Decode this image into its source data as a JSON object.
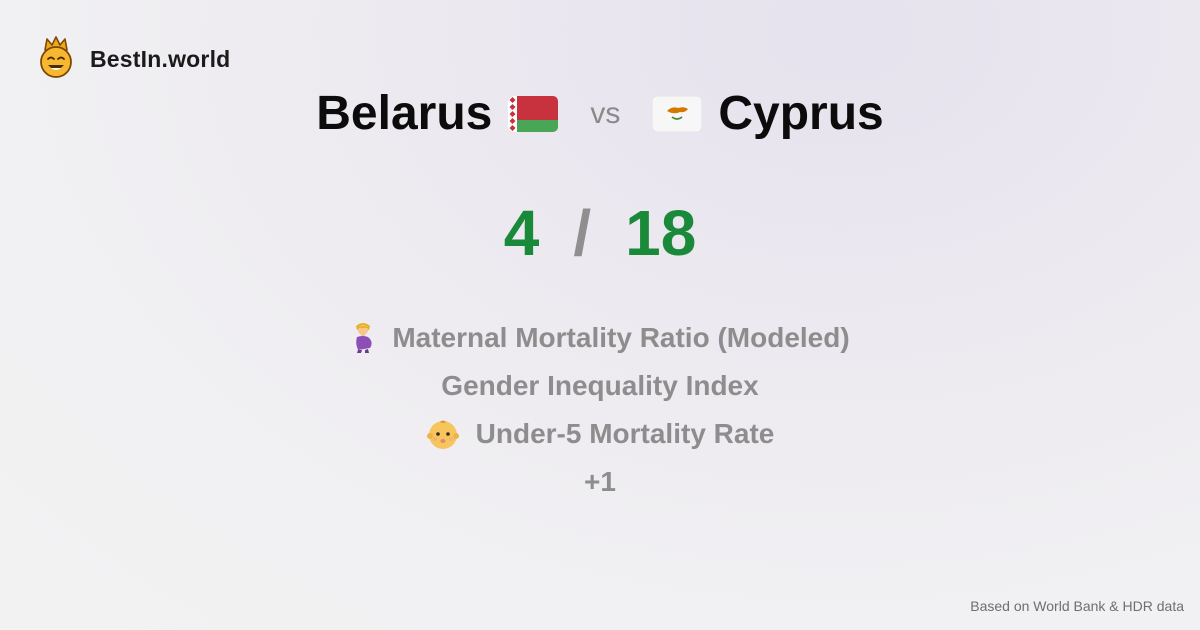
{
  "brand": {
    "name": "BestIn.world",
    "logo_icon": "crowned-smiley-icon"
  },
  "comparison": {
    "left_country": "Belarus",
    "left_flag_icon": "belarus-flag-icon",
    "vs_label": "vs",
    "right_country": "Cyprus",
    "right_flag_icon": "cyprus-flag-icon"
  },
  "score": {
    "left": "4",
    "separator": "/",
    "right": "18"
  },
  "metrics": [
    {
      "label": "Maternal Mortality Ratio (Modeled)",
      "icon": "pregnant-woman-icon"
    },
    {
      "label": "Gender Inequality Index",
      "icon": ""
    },
    {
      "label": "Under-5 Mortality Rate",
      "icon": "baby-icon"
    },
    {
      "label": "+1",
      "icon": ""
    }
  ],
  "footer": {
    "source": "Based on World Bank & HDR data"
  },
  "colors": {
    "score": "#1a8a3a",
    "muted": "#8d8d8d",
    "belarus_red": "#c8313e",
    "belarus_green": "#4aa657",
    "cyprus_copper": "#d57800"
  }
}
